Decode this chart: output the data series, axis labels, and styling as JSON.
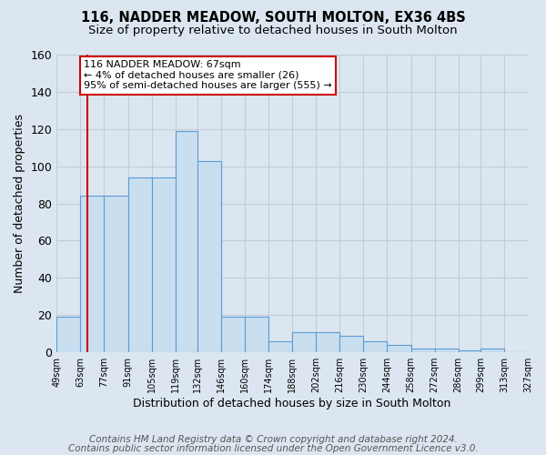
{
  "title": "116, NADDER MEADOW, SOUTH MOLTON, EX36 4BS",
  "subtitle": "Size of property relative to detached houses in South Molton",
  "xlabel": "Distribution of detached houses by size in South Molton",
  "ylabel": "Number of detached properties",
  "bin_edges": [
    49,
    63,
    77,
    91,
    105,
    119,
    132,
    146,
    160,
    174,
    188,
    202,
    216,
    230,
    244,
    258,
    272,
    286,
    299,
    313,
    327
  ],
  "bar_heights": [
    19,
    84,
    84,
    94,
    94,
    119,
    103,
    19,
    19,
    6,
    11,
    11,
    9,
    6,
    4,
    2,
    2,
    1,
    2,
    0,
    0
  ],
  "bar_color": "#c9dff0",
  "bar_edge_color": "#5b9bd5",
  "red_line_x": 67,
  "red_line_color": "#cc0000",
  "annotation_line1": "116 NADDER MEADOW: 67sqm",
  "annotation_line2": "← 4% of detached houses are smaller (26)",
  "annotation_line3": "95% of semi-detached houses are larger (555) →",
  "annotation_box_edge_color": "#cc0000",
  "annotation_box_face_color": "white",
  "ylim": [
    0,
    160
  ],
  "yticks": [
    0,
    20,
    40,
    60,
    80,
    100,
    120,
    140,
    160
  ],
  "tick_labels": [
    "49sqm",
    "63sqm",
    "77sqm",
    "91sqm",
    "105sqm",
    "119sqm",
    "132sqm",
    "146sqm",
    "160sqm",
    "174sqm",
    "188sqm",
    "202sqm",
    "216sqm",
    "230sqm",
    "244sqm",
    "258sqm",
    "272sqm",
    "286sqm",
    "299sqm",
    "313sqm",
    "327sqm"
  ],
  "figure_background_color": "#dce6f0",
  "plot_background_color": "#dce6f0",
  "grid_color": "#c0cdd8",
  "title_fontsize": 10.5,
  "subtitle_fontsize": 9.5,
  "footer_line1": "Contains HM Land Registry data © Crown copyright and database right 2024.",
  "footer_line2": "Contains public sector information licensed under the Open Government Licence v3.0.",
  "footer_fontsize": 7.5
}
